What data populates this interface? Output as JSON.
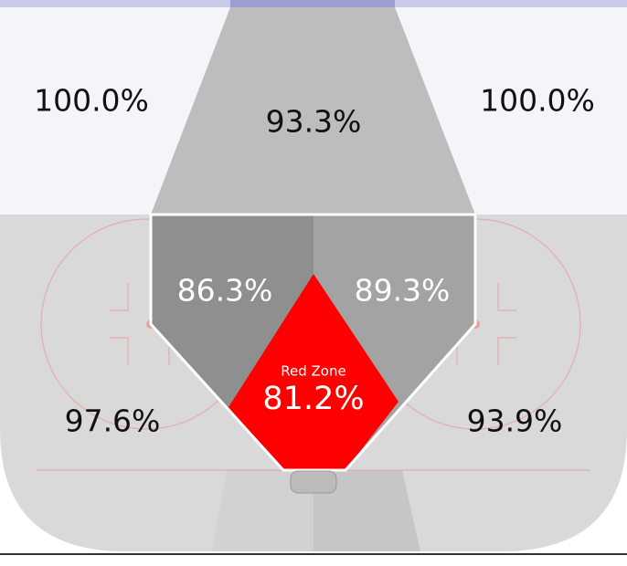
{
  "zones": [
    {
      "id": "top-left",
      "label": "100.0%"
    },
    {
      "id": "top-center",
      "label": "93.3%"
    },
    {
      "id": "top-right",
      "label": "100.0%"
    },
    {
      "id": "slot-left",
      "label": "86.3%"
    },
    {
      "id": "slot-right",
      "label": "89.3%"
    },
    {
      "id": "red-zone",
      "title": "Red Zone",
      "label": "81.2%"
    },
    {
      "id": "bottom-left",
      "label": "97.6%"
    },
    {
      "id": "bottom-right",
      "label": "93.9%"
    }
  ]
}
